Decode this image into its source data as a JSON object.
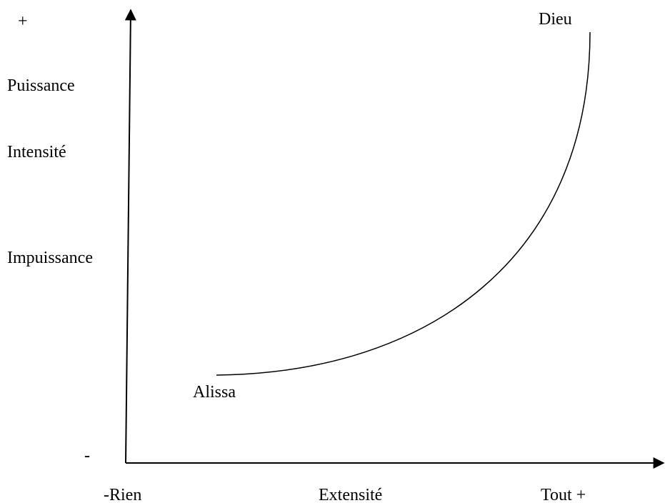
{
  "y_axis": {
    "top": "+",
    "labels": [
      "Puissance",
      "Intensité",
      "Impuissance"
    ],
    "bottom": "-"
  },
  "x_axis": {
    "start": "-Rien",
    "label": "Extensité",
    "end": "Tout +"
  },
  "curve": {
    "start": "Alissa",
    "end": "Dieu"
  }
}
